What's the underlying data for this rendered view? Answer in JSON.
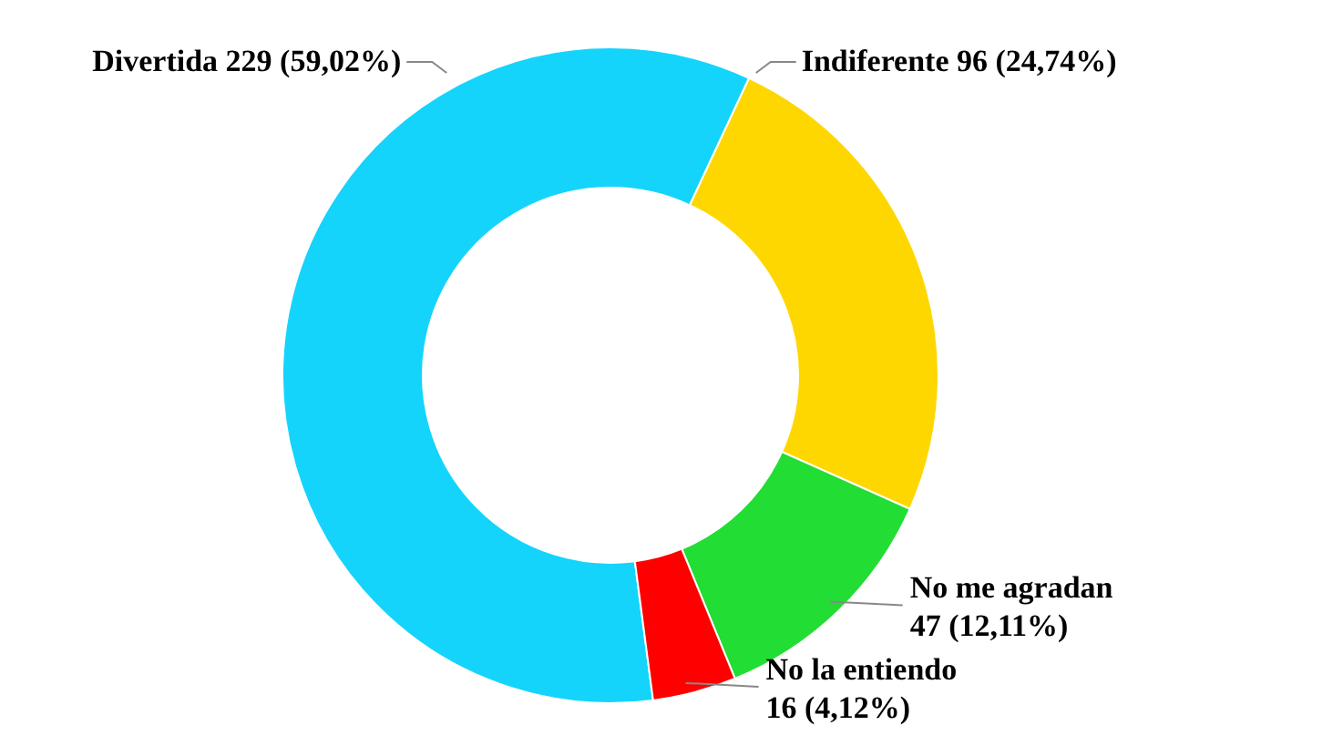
{
  "chart_data": {
    "type": "donut",
    "categories": [
      "Divertida",
      "Indiferente",
      "No me agradan",
      "No la entiendo"
    ],
    "values": [
      229,
      96,
      47,
      16
    ],
    "value_labels": [
      "229 (59,02%)",
      "96 (24,74%)",
      "47 (12,11%)",
      "16 (4,12%)"
    ],
    "colors": [
      "#14d4fc",
      "#ffd700",
      "#22dd33",
      "#ff0000"
    ]
  }
}
